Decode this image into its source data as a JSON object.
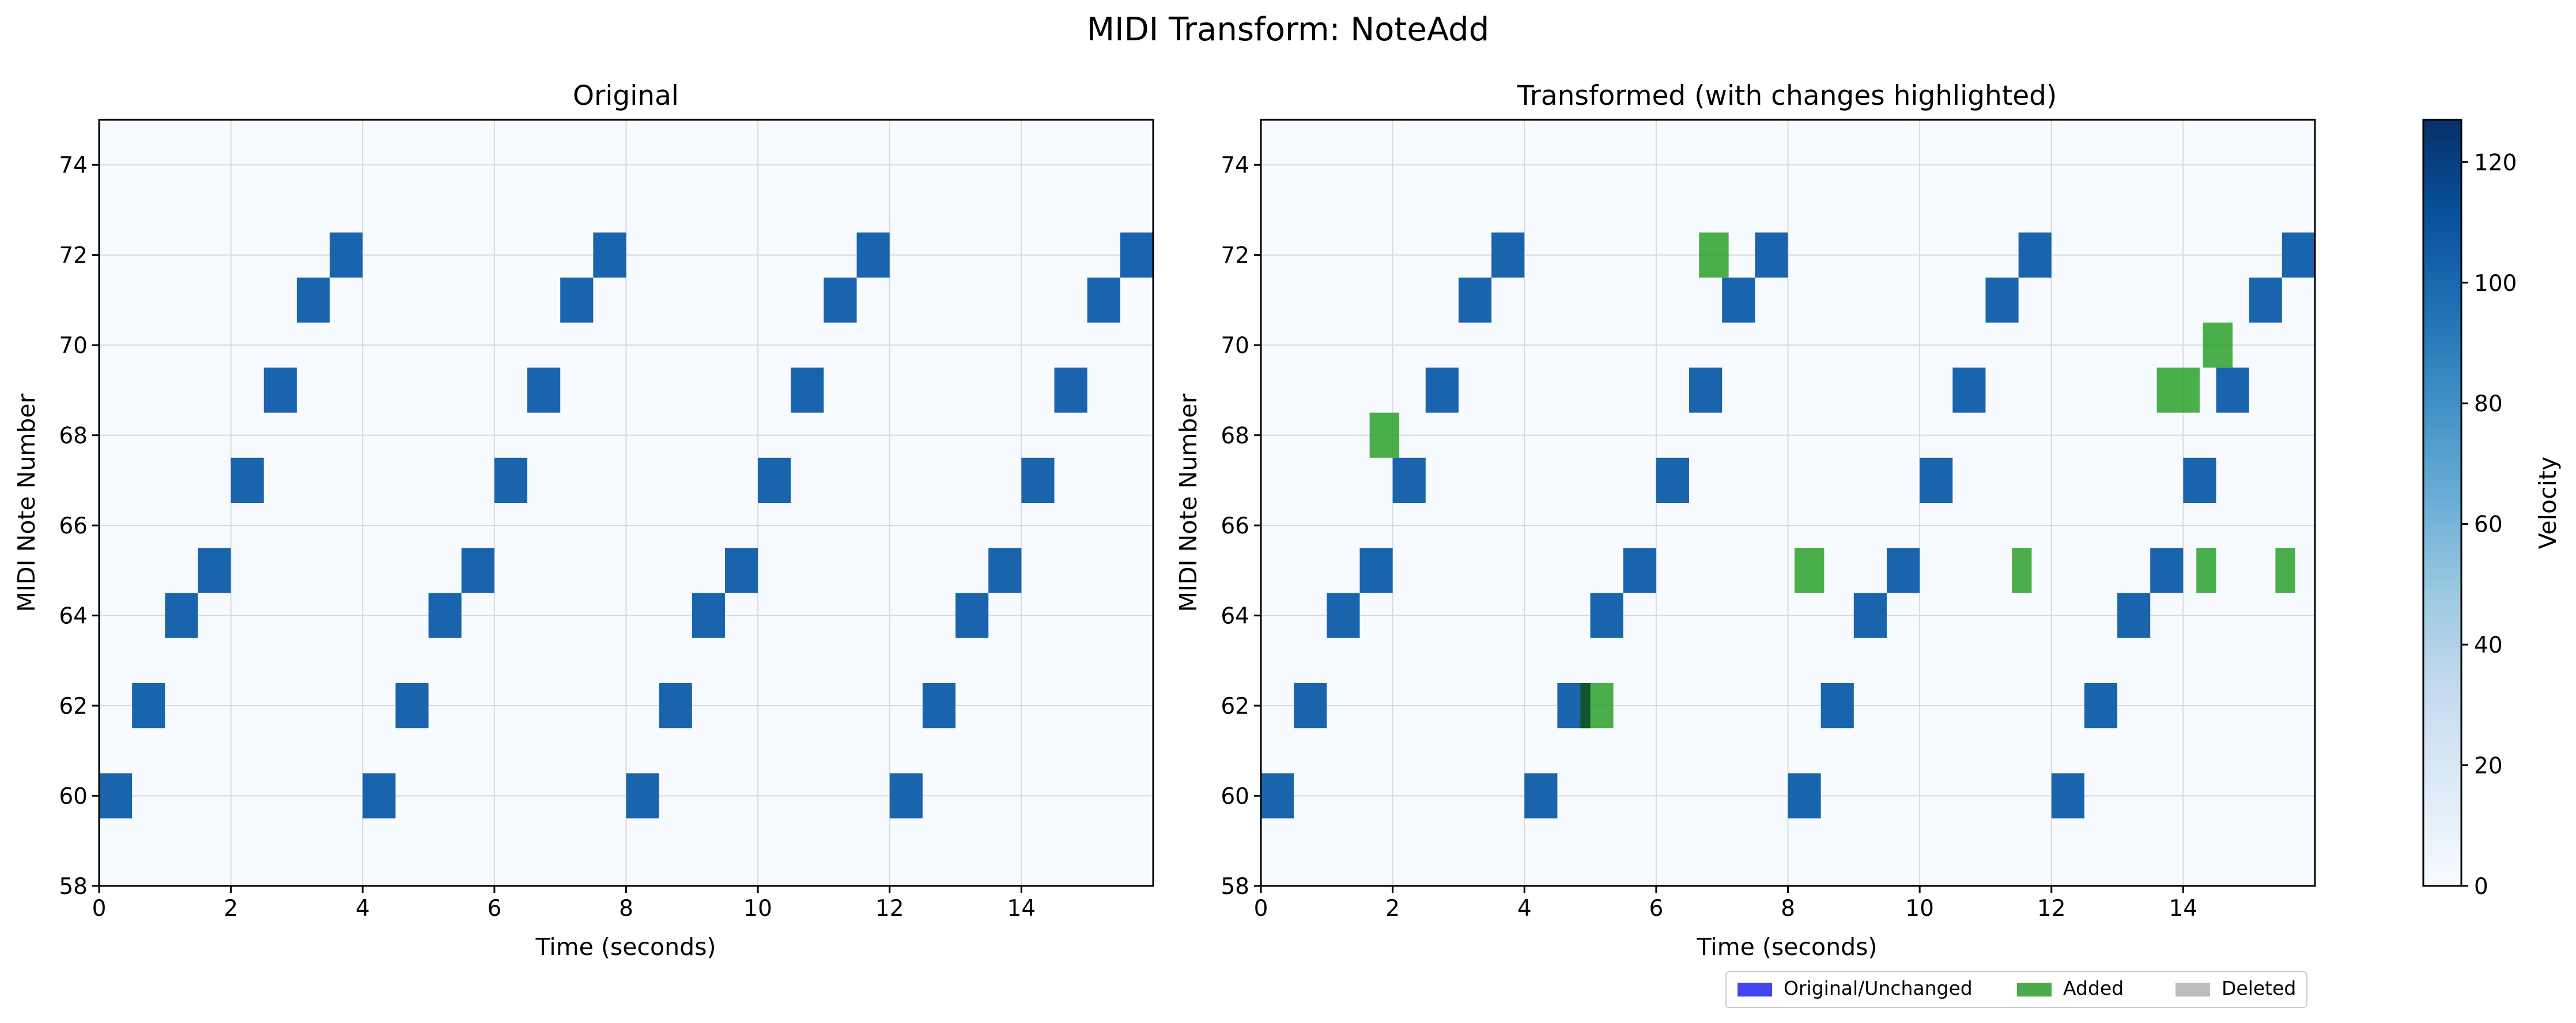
{
  "figure": {
    "title": "MIDI Transform: NoteAdd"
  },
  "colors": {
    "background": "#f7fbff",
    "note_blue": "#1a64ad",
    "added": "#2ca02c",
    "added_dark": "#1e7a30",
    "overlap_dark": "#0b3d2a",
    "grid": "#d9d9d9",
    "legend_unchanged": "#4444ee",
    "legend_added": "#4caa4c",
    "legend_deleted": "#bdbdbd"
  },
  "chart_data": [
    {
      "type": "heatmap",
      "title": "Original",
      "xlabel": "Time (seconds)",
      "ylabel": "MIDI Note Number",
      "xlim": [
        0,
        16
      ],
      "ylim": [
        58,
        75
      ],
      "xticks": [
        0,
        2,
        4,
        6,
        8,
        10,
        12,
        14
      ],
      "yticks": [
        58,
        60,
        62,
        64,
        66,
        68,
        70,
        72,
        74
      ],
      "grid": true,
      "notes": [
        {
          "start": 0.0,
          "dur": 0.5,
          "pitch": 60,
          "velocity": 100
        },
        {
          "start": 0.5,
          "dur": 0.5,
          "pitch": 62,
          "velocity": 100
        },
        {
          "start": 1.0,
          "dur": 0.5,
          "pitch": 64,
          "velocity": 100
        },
        {
          "start": 1.5,
          "dur": 0.5,
          "pitch": 65,
          "velocity": 100
        },
        {
          "start": 2.0,
          "dur": 0.5,
          "pitch": 67,
          "velocity": 100
        },
        {
          "start": 2.5,
          "dur": 0.5,
          "pitch": 69,
          "velocity": 100
        },
        {
          "start": 3.0,
          "dur": 0.5,
          "pitch": 71,
          "velocity": 100
        },
        {
          "start": 3.5,
          "dur": 0.5,
          "pitch": 72,
          "velocity": 100
        },
        {
          "start": 4.0,
          "dur": 0.5,
          "pitch": 60,
          "velocity": 100
        },
        {
          "start": 4.5,
          "dur": 0.5,
          "pitch": 62,
          "velocity": 100
        },
        {
          "start": 5.0,
          "dur": 0.5,
          "pitch": 64,
          "velocity": 100
        },
        {
          "start": 5.5,
          "dur": 0.5,
          "pitch": 65,
          "velocity": 100
        },
        {
          "start": 6.0,
          "dur": 0.5,
          "pitch": 67,
          "velocity": 100
        },
        {
          "start": 6.5,
          "dur": 0.5,
          "pitch": 69,
          "velocity": 100
        },
        {
          "start": 7.0,
          "dur": 0.5,
          "pitch": 71,
          "velocity": 100
        },
        {
          "start": 7.5,
          "dur": 0.5,
          "pitch": 72,
          "velocity": 100
        },
        {
          "start": 8.0,
          "dur": 0.5,
          "pitch": 60,
          "velocity": 100
        },
        {
          "start": 8.5,
          "dur": 0.5,
          "pitch": 62,
          "velocity": 100
        },
        {
          "start": 9.0,
          "dur": 0.5,
          "pitch": 64,
          "velocity": 100
        },
        {
          "start": 9.5,
          "dur": 0.5,
          "pitch": 65,
          "velocity": 100
        },
        {
          "start": 10.0,
          "dur": 0.5,
          "pitch": 67,
          "velocity": 100
        },
        {
          "start": 10.5,
          "dur": 0.5,
          "pitch": 69,
          "velocity": 100
        },
        {
          "start": 11.0,
          "dur": 0.5,
          "pitch": 71,
          "velocity": 100
        },
        {
          "start": 11.5,
          "dur": 0.5,
          "pitch": 72,
          "velocity": 100
        },
        {
          "start": 12.0,
          "dur": 0.5,
          "pitch": 60,
          "velocity": 100
        },
        {
          "start": 12.5,
          "dur": 0.5,
          "pitch": 62,
          "velocity": 100
        },
        {
          "start": 13.0,
          "dur": 0.5,
          "pitch": 64,
          "velocity": 100
        },
        {
          "start": 13.5,
          "dur": 0.5,
          "pitch": 65,
          "velocity": 100
        },
        {
          "start": 14.0,
          "dur": 0.5,
          "pitch": 67,
          "velocity": 100
        },
        {
          "start": 14.5,
          "dur": 0.5,
          "pitch": 69,
          "velocity": 100
        },
        {
          "start": 15.0,
          "dur": 0.5,
          "pitch": 71,
          "velocity": 100
        },
        {
          "start": 15.5,
          "dur": 0.5,
          "pitch": 72,
          "velocity": 100
        }
      ]
    },
    {
      "type": "heatmap",
      "title": "Transformed (with changes highlighted)",
      "xlabel": "Time (seconds)",
      "ylabel": "MIDI Note Number",
      "xlim": [
        0,
        16
      ],
      "ylim": [
        58,
        75
      ],
      "xticks": [
        0,
        2,
        4,
        6,
        8,
        10,
        12,
        14
      ],
      "yticks": [
        58,
        60,
        62,
        64,
        66,
        68,
        70,
        72,
        74
      ],
      "grid": true,
      "notes": [
        {
          "start": 0.0,
          "dur": 0.5,
          "pitch": 60,
          "velocity": 100
        },
        {
          "start": 0.5,
          "dur": 0.5,
          "pitch": 62,
          "velocity": 100
        },
        {
          "start": 1.0,
          "dur": 0.5,
          "pitch": 64,
          "velocity": 100
        },
        {
          "start": 1.5,
          "dur": 0.5,
          "pitch": 65,
          "velocity": 100
        },
        {
          "start": 2.0,
          "dur": 0.5,
          "pitch": 67,
          "velocity": 100
        },
        {
          "start": 2.5,
          "dur": 0.5,
          "pitch": 69,
          "velocity": 100
        },
        {
          "start": 3.0,
          "dur": 0.5,
          "pitch": 71,
          "velocity": 100
        },
        {
          "start": 3.5,
          "dur": 0.5,
          "pitch": 72,
          "velocity": 100
        },
        {
          "start": 4.0,
          "dur": 0.5,
          "pitch": 60,
          "velocity": 100
        },
        {
          "start": 4.5,
          "dur": 0.5,
          "pitch": 62,
          "velocity": 100
        },
        {
          "start": 5.0,
          "dur": 0.5,
          "pitch": 64,
          "velocity": 100
        },
        {
          "start": 5.5,
          "dur": 0.5,
          "pitch": 65,
          "velocity": 100
        },
        {
          "start": 6.0,
          "dur": 0.5,
          "pitch": 67,
          "velocity": 100
        },
        {
          "start": 6.5,
          "dur": 0.5,
          "pitch": 69,
          "velocity": 100
        },
        {
          "start": 7.0,
          "dur": 0.5,
          "pitch": 71,
          "velocity": 100
        },
        {
          "start": 7.5,
          "dur": 0.5,
          "pitch": 72,
          "velocity": 100
        },
        {
          "start": 8.0,
          "dur": 0.5,
          "pitch": 60,
          "velocity": 100
        },
        {
          "start": 8.5,
          "dur": 0.5,
          "pitch": 62,
          "velocity": 100
        },
        {
          "start": 9.0,
          "dur": 0.5,
          "pitch": 64,
          "velocity": 100
        },
        {
          "start": 9.5,
          "dur": 0.5,
          "pitch": 65,
          "velocity": 100
        },
        {
          "start": 10.0,
          "dur": 0.5,
          "pitch": 67,
          "velocity": 100
        },
        {
          "start": 10.5,
          "dur": 0.5,
          "pitch": 69,
          "velocity": 100
        },
        {
          "start": 11.0,
          "dur": 0.5,
          "pitch": 71,
          "velocity": 100
        },
        {
          "start": 11.5,
          "dur": 0.5,
          "pitch": 72,
          "velocity": 100
        },
        {
          "start": 12.0,
          "dur": 0.5,
          "pitch": 60,
          "velocity": 100
        },
        {
          "start": 12.5,
          "dur": 0.5,
          "pitch": 62,
          "velocity": 100
        },
        {
          "start": 13.0,
          "dur": 0.5,
          "pitch": 64,
          "velocity": 100
        },
        {
          "start": 13.5,
          "dur": 0.5,
          "pitch": 65,
          "velocity": 100
        },
        {
          "start": 14.0,
          "dur": 0.5,
          "pitch": 67,
          "velocity": 100
        },
        {
          "start": 14.5,
          "dur": 0.5,
          "pitch": 69,
          "velocity": 100
        },
        {
          "start": 15.0,
          "dur": 0.5,
          "pitch": 71,
          "velocity": 100
        },
        {
          "start": 15.5,
          "dur": 0.5,
          "pitch": 72,
          "velocity": 100
        }
      ],
      "added_notes": [
        {
          "start": 1.65,
          "dur": 0.45,
          "pitch": 68
        },
        {
          "start": 4.85,
          "dur": 0.5,
          "pitch": 62
        },
        {
          "start": 6.65,
          "dur": 0.45,
          "pitch": 72
        },
        {
          "start": 8.1,
          "dur": 0.45,
          "pitch": 65
        },
        {
          "start": 11.4,
          "dur": 0.3,
          "pitch": 65
        },
        {
          "start": 13.6,
          "dur": 0.65,
          "pitch": 69
        },
        {
          "start": 14.2,
          "dur": 0.3,
          "pitch": 65
        },
        {
          "start": 14.3,
          "dur": 0.45,
          "pitch": 70
        },
        {
          "start": 15.4,
          "dur": 0.3,
          "pitch": 65
        }
      ],
      "legend": {
        "placement": "bottom-right, below axes",
        "entries": [
          "Original/Unchanged",
          "Added",
          "Deleted"
        ]
      }
    }
  ],
  "colorbar": {
    "label": "Velocity",
    "range": [
      0,
      127
    ],
    "ticks": [
      0,
      20,
      40,
      60,
      80,
      100,
      120
    ]
  }
}
